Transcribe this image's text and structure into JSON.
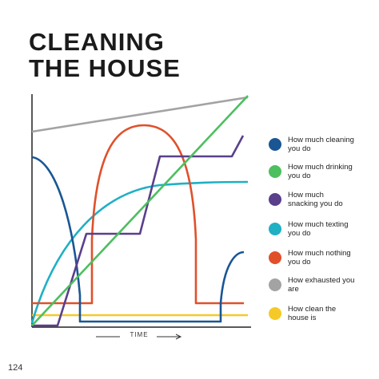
{
  "title": [
    "CLEANING",
    "THE HOUSE"
  ],
  "x_label": "TIME",
  "page_number": "124",
  "legend": [
    {
      "label": "How much cleaning you do",
      "color": "#1a5694"
    },
    {
      "label": "How much drinking you do",
      "color": "#4cbf5f"
    },
    {
      "label": "How much snacking you do",
      "color": "#5a3f8c"
    },
    {
      "label": "How much texting you do",
      "color": "#1fb0c4"
    },
    {
      "label": "How much nothing you do",
      "color": "#e0502b"
    },
    {
      "label": "How exhausted you are",
      "color": "#a3a3a3"
    },
    {
      "label": "How clean the house is",
      "color": "#f5c928"
    }
  ]
}
